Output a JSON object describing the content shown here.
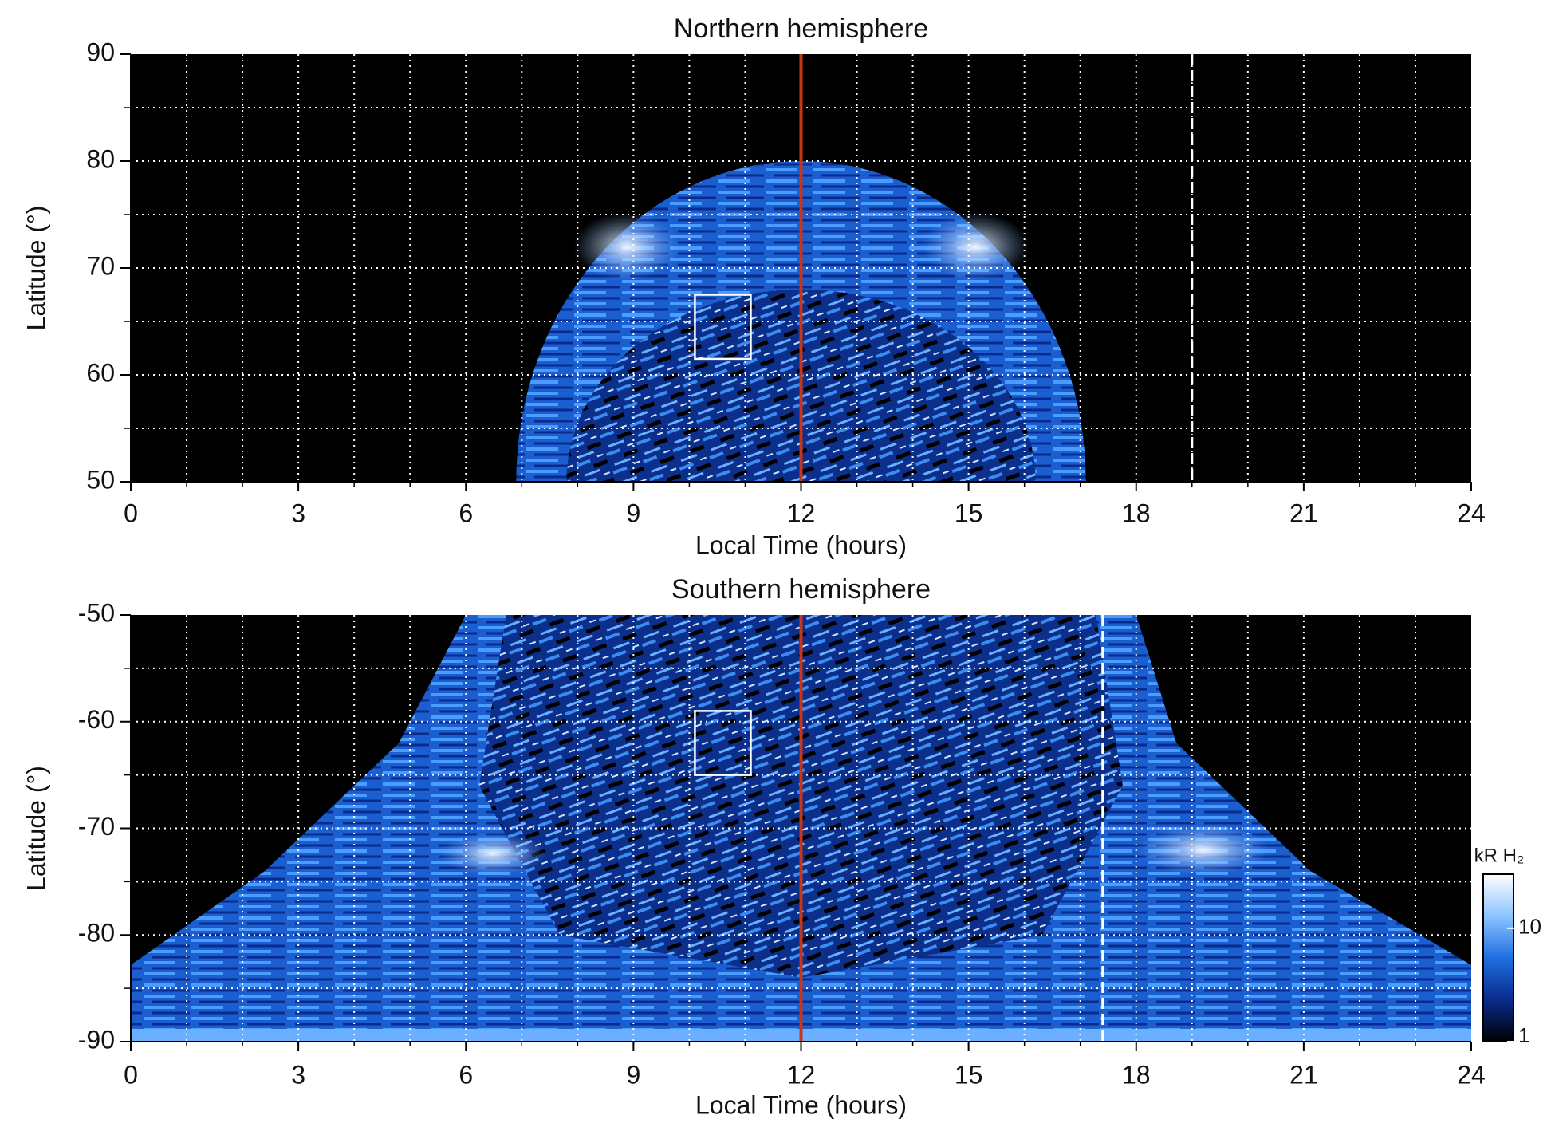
{
  "chart_data": [
    {
      "type": "heatmap",
      "title": "Northern hemisphere",
      "xlabel": "Local Time (hours)",
      "ylabel": "Latitude (°)",
      "xlim": [
        0,
        24
      ],
      "xticks": [
        0,
        3,
        6,
        9,
        12,
        15,
        18,
        21,
        24
      ],
      "ylim": [
        50,
        90
      ],
      "yticks": [
        50,
        60,
        70,
        80,
        90
      ],
      "xgrid": [
        1,
        2,
        3,
        4,
        5,
        6,
        7,
        8,
        9,
        10,
        11,
        12,
        13,
        14,
        15,
        16,
        17,
        18,
        19,
        20,
        21,
        22,
        23
      ],
      "ygrid": [
        55,
        60,
        65,
        70,
        75,
        80,
        85
      ],
      "vlines": [
        {
          "x": 12,
          "color": "#c8361a",
          "dashed": false
        },
        {
          "x": 19,
          "color": "#ffffff",
          "dashed": true
        }
      ],
      "boxes": [
        {
          "x": [
            10.1,
            11.1
          ],
          "y": [
            61.5,
            67.5
          ],
          "color": "#ffffff"
        }
      ]
    },
    {
      "type": "heatmap",
      "title": "Southern hemisphere",
      "xlabel": "Local Time (hours)",
      "ylabel": "Latitude (°)",
      "xlim": [
        0,
        24
      ],
      "xticks": [
        0,
        3,
        6,
        9,
        12,
        15,
        18,
        21,
        24
      ],
      "ylim": [
        -90,
        -50
      ],
      "yticks": [
        -90,
        -80,
        -70,
        -60,
        -50
      ],
      "xgrid": [
        1,
        2,
        3,
        4,
        5,
        6,
        7,
        8,
        9,
        10,
        11,
        12,
        13,
        14,
        15,
        16,
        17,
        18,
        19,
        20,
        21,
        22,
        23
      ],
      "ygrid": [
        -85,
        -80,
        -75,
        -70,
        -65,
        -60,
        -55
      ],
      "vlines": [
        {
          "x": 12,
          "color": "#c8361a",
          "dashed": false
        },
        {
          "x": 17.4,
          "color": "#ffffff",
          "dashed": true
        }
      ],
      "boxes": [
        {
          "x": [
            10.1,
            11.1
          ],
          "y": [
            -65,
            -59
          ],
          "color": "#ffffff"
        }
      ],
      "colorbar": {
        "label": "kR H₂",
        "log": true,
        "lim": [
          1,
          30
        ],
        "ticks": [
          1,
          10
        ],
        "colors": [
          "#000000",
          "#0a2a8c",
          "#1f6fe0",
          "#8cc4ff",
          "#ffffff"
        ]
      }
    }
  ]
}
